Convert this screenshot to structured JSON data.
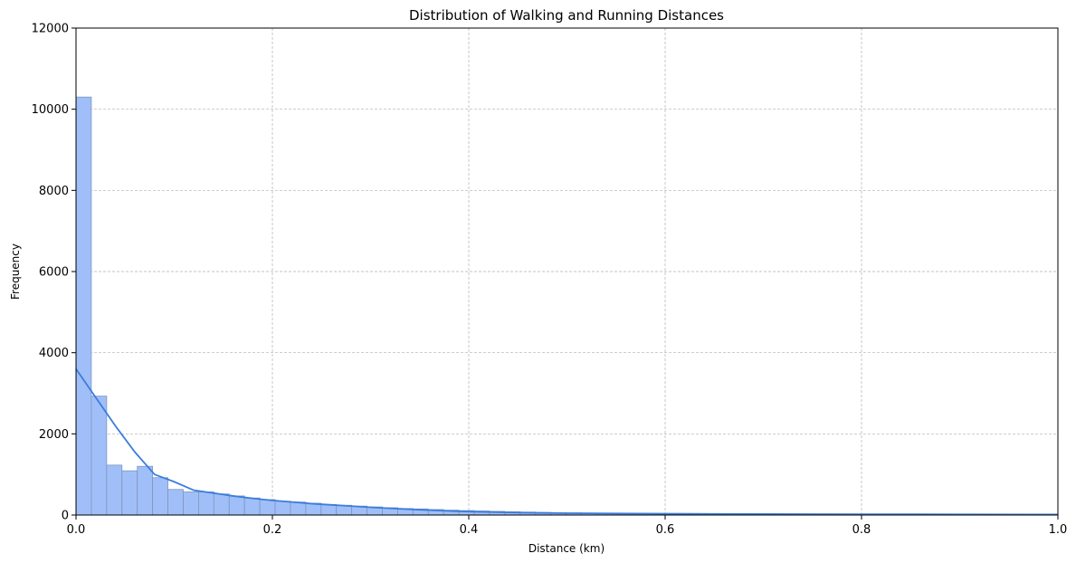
{
  "chart_data": {
    "type": "bar",
    "title": "Distribution of Walking and Running Distances",
    "xlabel": "Distance (km)",
    "ylabel": "Frequency",
    "xlim": [
      0,
      1.0
    ],
    "ylim": [
      0,
      12000
    ],
    "xticks": [
      0.0,
      0.2,
      0.4,
      0.6,
      0.8,
      1.0
    ],
    "xtick_labels": [
      "0.0",
      "0.2",
      "0.4",
      "0.6",
      "0.8",
      "1.0"
    ],
    "yticks": [
      0,
      2000,
      4000,
      6000,
      8000,
      10000,
      12000
    ],
    "ytick_labels": [
      "0",
      "2000",
      "4000",
      "6000",
      "8000",
      "10000",
      "12000"
    ],
    "grid": true,
    "bin_width": 0.0156,
    "bin_starts": [
      0.0,
      0.0156,
      0.0312,
      0.0468,
      0.0624,
      0.078,
      0.0936,
      0.1092,
      0.1248,
      0.1404,
      0.156,
      0.1716,
      0.1872,
      0.2028,
      0.2184,
      0.234,
      0.2496,
      0.2652,
      0.2808,
      0.2964,
      0.312,
      0.3276,
      0.3432,
      0.3588,
      0.3744,
      0.39,
      0.4056,
      0.4212,
      0.4368,
      0.4524,
      0.468,
      0.4836,
      0.4992,
      0.5148,
      0.5304,
      0.546,
      0.5616,
      0.5772,
      0.5928,
      0.6084,
      0.624,
      0.6396,
      0.6552,
      0.6708,
      0.6864,
      0.702,
      0.7176,
      0.7332,
      0.7488,
      0.7644,
      0.78,
      0.7956,
      0.8112,
      0.8268,
      0.8424,
      0.858,
      0.8736,
      0.8892,
      0.9048,
      0.9204,
      0.936,
      0.9516,
      0.9672,
      0.9828
    ],
    "values": [
      10300,
      2930,
      1230,
      1090,
      1200,
      920,
      630,
      570,
      570,
      520,
      470,
      420,
      380,
      340,
      320,
      290,
      260,
      240,
      220,
      200,
      180,
      160,
      150,
      135,
      120,
      110,
      100,
      90,
      80,
      72,
      64,
      58,
      52,
      46,
      42,
      38,
      35,
      32,
      30,
      28,
      26,
      24,
      22,
      20,
      19,
      18,
      17,
      16,
      15,
      14,
      13,
      12,
      11,
      10,
      10,
      9,
      9,
      8,
      8,
      7,
      7,
      6,
      6,
      5
    ],
    "kde": {
      "x": [
        0.0,
        0.02,
        0.04,
        0.06,
        0.08,
        0.1,
        0.12,
        0.14,
        0.16,
        0.18,
        0.2,
        0.22,
        0.24,
        0.26,
        0.28,
        0.3,
        0.32,
        0.35,
        0.38,
        0.4,
        0.45,
        0.5,
        0.55,
        0.6,
        0.65,
        0.7,
        0.8,
        0.9,
        1.0
      ],
      "y": [
        3600,
        2900,
        2200,
        1550,
        1000,
        820,
        610,
        540,
        470,
        410,
        360,
        320,
        280,
        250,
        220,
        190,
        165,
        130,
        100,
        85,
        60,
        45,
        38,
        32,
        28,
        25,
        20,
        16,
        12
      ]
    },
    "bar_color": "#a0bff8",
    "bar_edge_color": "#7f95bd",
    "kde_color": "#3b7ddd"
  }
}
